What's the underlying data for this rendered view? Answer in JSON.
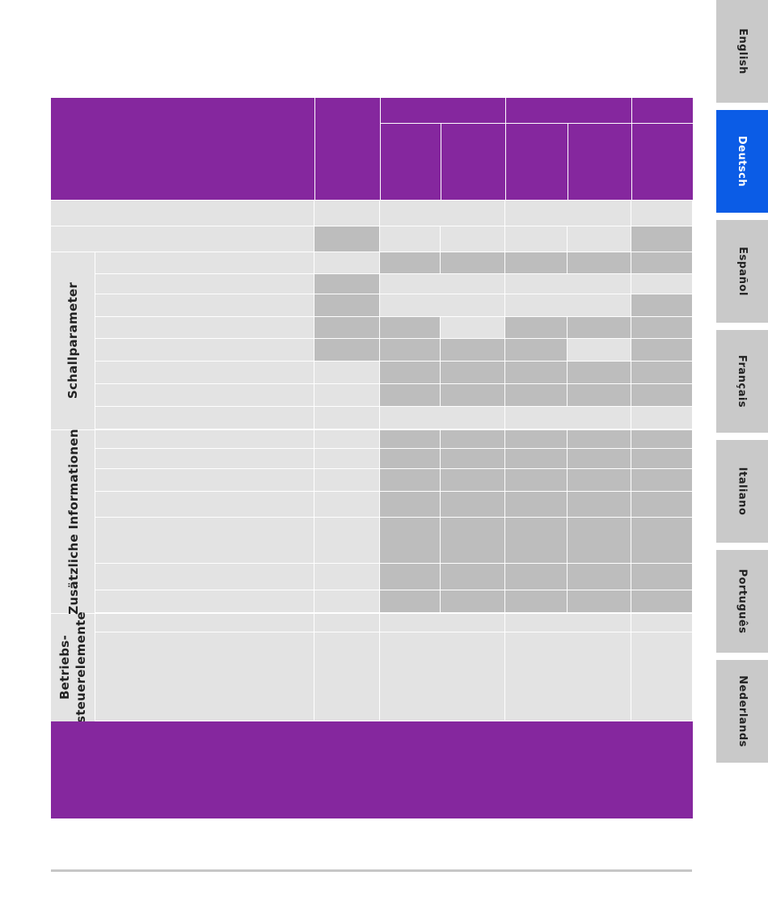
{
  "side_tabs": [
    {
      "label": "English",
      "active": false
    },
    {
      "label": "Deutsch",
      "active": true
    },
    {
      "label": "Español",
      "active": false
    },
    {
      "label": "Français",
      "active": false
    },
    {
      "label": "Italiano",
      "active": false
    },
    {
      "label": "Português",
      "active": false
    },
    {
      "label": "Nederlands",
      "active": false
    }
  ],
  "sections": {
    "acoustic": "Schallparameter",
    "additional": "Zusätzliche Informationen",
    "controls_line1": "Betriebs-",
    "controls_line2": "steuerelemente"
  },
  "colors": {
    "header_purple": "#85279e",
    "cell_light": "#e3e3e3",
    "cell_dark": "#bdbdbd",
    "active_tab": "#0b5ce6",
    "inactive_tab": "#c9c9c9"
  }
}
